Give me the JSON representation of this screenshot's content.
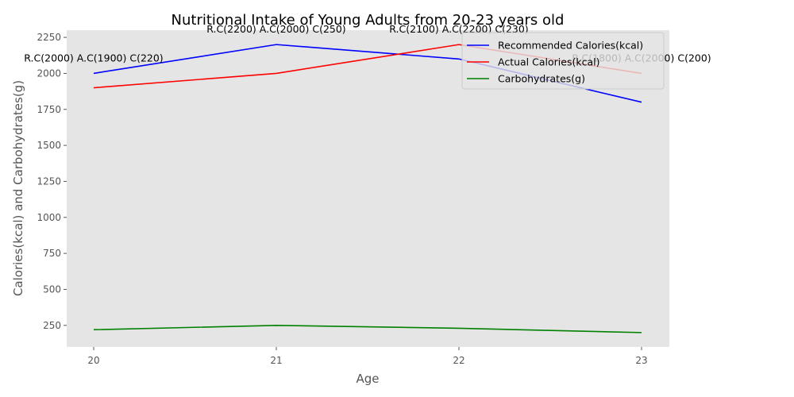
{
  "chart_data": {
    "type": "line",
    "title": "Nutritional Intake of Young Adults from 20-23 years old",
    "xlabel": "Age",
    "ylabel": "Calories(kcal) and Carbohydrates(g)",
    "x": [
      20,
      21,
      22,
      23
    ],
    "x_tick_labels": [
      "20",
      "21",
      "22",
      "23"
    ],
    "ylim": [
      100,
      2300
    ],
    "y_ticks": [
      250,
      500,
      750,
      1000,
      1250,
      1500,
      1750,
      2000,
      2250
    ],
    "y_tick_labels": [
      "250",
      "500",
      "750",
      "1000",
      "1250",
      "1500",
      "1750",
      "2000",
      "2250"
    ],
    "grid": false,
    "legend_position": "top-right",
    "series": [
      {
        "name": "Recommended Calories(kcal)",
        "color": "#0000ff",
        "values": [
          2000,
          2200,
          2100,
          1800
        ]
      },
      {
        "name": "Actual Calories(kcal)",
        "color": "#ff0000",
        "values": [
          1900,
          2000,
          2200,
          2000
        ]
      },
      {
        "name": "Carbohydrates(g)",
        "color": "#008000",
        "values": [
          220,
          250,
          230,
          200
        ]
      }
    ],
    "annotations": [
      {
        "x": 20,
        "text": "R.C(2000) A.C(1900) C(220)"
      },
      {
        "x": 21,
        "text": "R.C(2200) A.C(2000) C(250)"
      },
      {
        "x": 22,
        "text": "R.C(2100) A.C(2200) C(230)"
      },
      {
        "x": 23,
        "text": "R.C(1800) A.C(2000) C(200)"
      }
    ]
  }
}
